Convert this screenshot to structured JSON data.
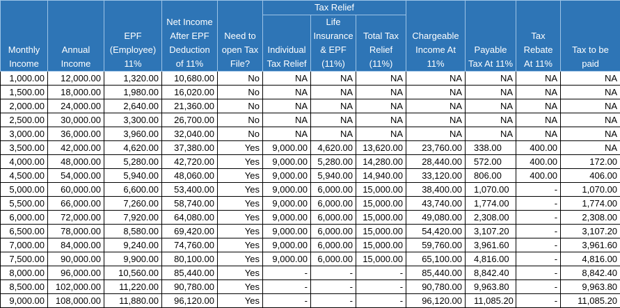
{
  "table": {
    "group_header": "Tax Relief",
    "headers": [
      "Monthly\nIncome",
      "Annual\nIncome",
      "EPF\n(Employee)\n11%",
      "Net Income\nAfter EPF\nDeduction\nof 11%",
      "Need to\nopen Tax\nFile?",
      "Individual\nTax Relief",
      "Life\nInsurance\n& EPF\n(11%)",
      "Total Tax\nRelief\n(11%)",
      "Chargeable\nIncome At\n11%",
      "Payable\nTax At 11%",
      "Tax\nRebate\nAt 11%",
      "Tax to be\npaid"
    ],
    "rows": [
      [
        "1,000.00",
        "12,000.00",
        "1,320.00",
        "10,680.00",
        "No",
        "NA",
        "NA",
        "NA",
        "NA",
        "NA",
        "NA",
        "NA"
      ],
      [
        "1,500.00",
        "18,000.00",
        "1,980.00",
        "16,020.00",
        "No",
        "NA",
        "NA",
        "NA",
        "NA",
        "NA",
        "NA",
        "NA"
      ],
      [
        "2,000.00",
        "24,000.00",
        "2,640.00",
        "21,360.00",
        "No",
        "NA",
        "NA",
        "NA",
        "NA",
        "NA",
        "NA",
        "NA"
      ],
      [
        "2,500.00",
        "30,000.00",
        "3,300.00",
        "26,700.00",
        "No",
        "NA",
        "NA",
        "NA",
        "NA",
        "NA",
        "NA",
        "NA"
      ],
      [
        "3,000.00",
        "36,000.00",
        "3,960.00",
        "32,040.00",
        "No",
        "NA",
        "NA",
        "NA",
        "NA",
        "NA",
        "NA",
        "NA"
      ],
      [
        "3,500.00",
        "42,000.00",
        "4,620.00",
        "37,380.00",
        "Yes",
        "9,000.00",
        "4,620.00",
        "13,620.00",
        "23,760.00",
        "338.00",
        "400.00",
        "NA"
      ],
      [
        "4,000.00",
        "48,000.00",
        "5,280.00",
        "42,720.00",
        "Yes",
        "9,000.00",
        "5,280.00",
        "14,280.00",
        "28,440.00",
        "572.00",
        "400.00",
        "172.00"
      ],
      [
        "4,500.00",
        "54,000.00",
        "5,940.00",
        "48,060.00",
        "Yes",
        "9,000.00",
        "5,940.00",
        "14,940.00",
        "33,120.00",
        "806.00",
        "400.00",
        "406.00"
      ],
      [
        "5,000.00",
        "60,000.00",
        "6,600.00",
        "53,400.00",
        "Yes",
        "9,000.00",
        "6,000.00",
        "15,000.00",
        "38,400.00",
        "1,070.00",
        "-",
        "1,070.00"
      ],
      [
        "5,500.00",
        "66,000.00",
        "7,260.00",
        "58,740.00",
        "Yes",
        "9,000.00",
        "6,000.00",
        "15,000.00",
        "43,740.00",
        "1,774.00",
        "-",
        "1,774.00"
      ],
      [
        "6,000.00",
        "72,000.00",
        "7,920.00",
        "64,080.00",
        "Yes",
        "9,000.00",
        "6,000.00",
        "15,000.00",
        "49,080.00",
        "2,308.00",
        "-",
        "2,308.00"
      ],
      [
        "6,500.00",
        "78,000.00",
        "8,580.00",
        "69,420.00",
        "Yes",
        "9,000.00",
        "6,000.00",
        "15,000.00",
        "54,420.00",
        "3,107.20",
        "-",
        "3,107.20"
      ],
      [
        "7,000.00",
        "84,000.00",
        "9,240.00",
        "74,760.00",
        "Yes",
        "9,000.00",
        "6,000.00",
        "15,000.00",
        "59,760.00",
        "3,961.60",
        "-",
        "3,961.60"
      ],
      [
        "7,500.00",
        "90,000.00",
        "9,900.00",
        "80,100.00",
        "Yes",
        "9,000.00",
        "6,000.00",
        "15,000.00",
        "65,100.00",
        "4,816.00",
        "-",
        "4,816.00"
      ],
      [
        "8,000.00",
        "96,000.00",
        "10,560.00",
        "85,440.00",
        "Yes",
        "-",
        "-",
        "-",
        "85,440.00",
        "8,842.40",
        "-",
        "8,842.40"
      ],
      [
        "8,500.00",
        "102,000.00",
        "11,220.00",
        "90,780.00",
        "Yes",
        "-",
        "-",
        "-",
        "90,780.00",
        "9,963.80",
        "-",
        "9,963.80"
      ],
      [
        "9,000.00",
        "108,000.00",
        "11,880.00",
        "96,120.00",
        "Yes",
        "-",
        "-",
        "-",
        "96,120.00",
        "11,085.20",
        "-",
        "11,085.20"
      ]
    ]
  }
}
